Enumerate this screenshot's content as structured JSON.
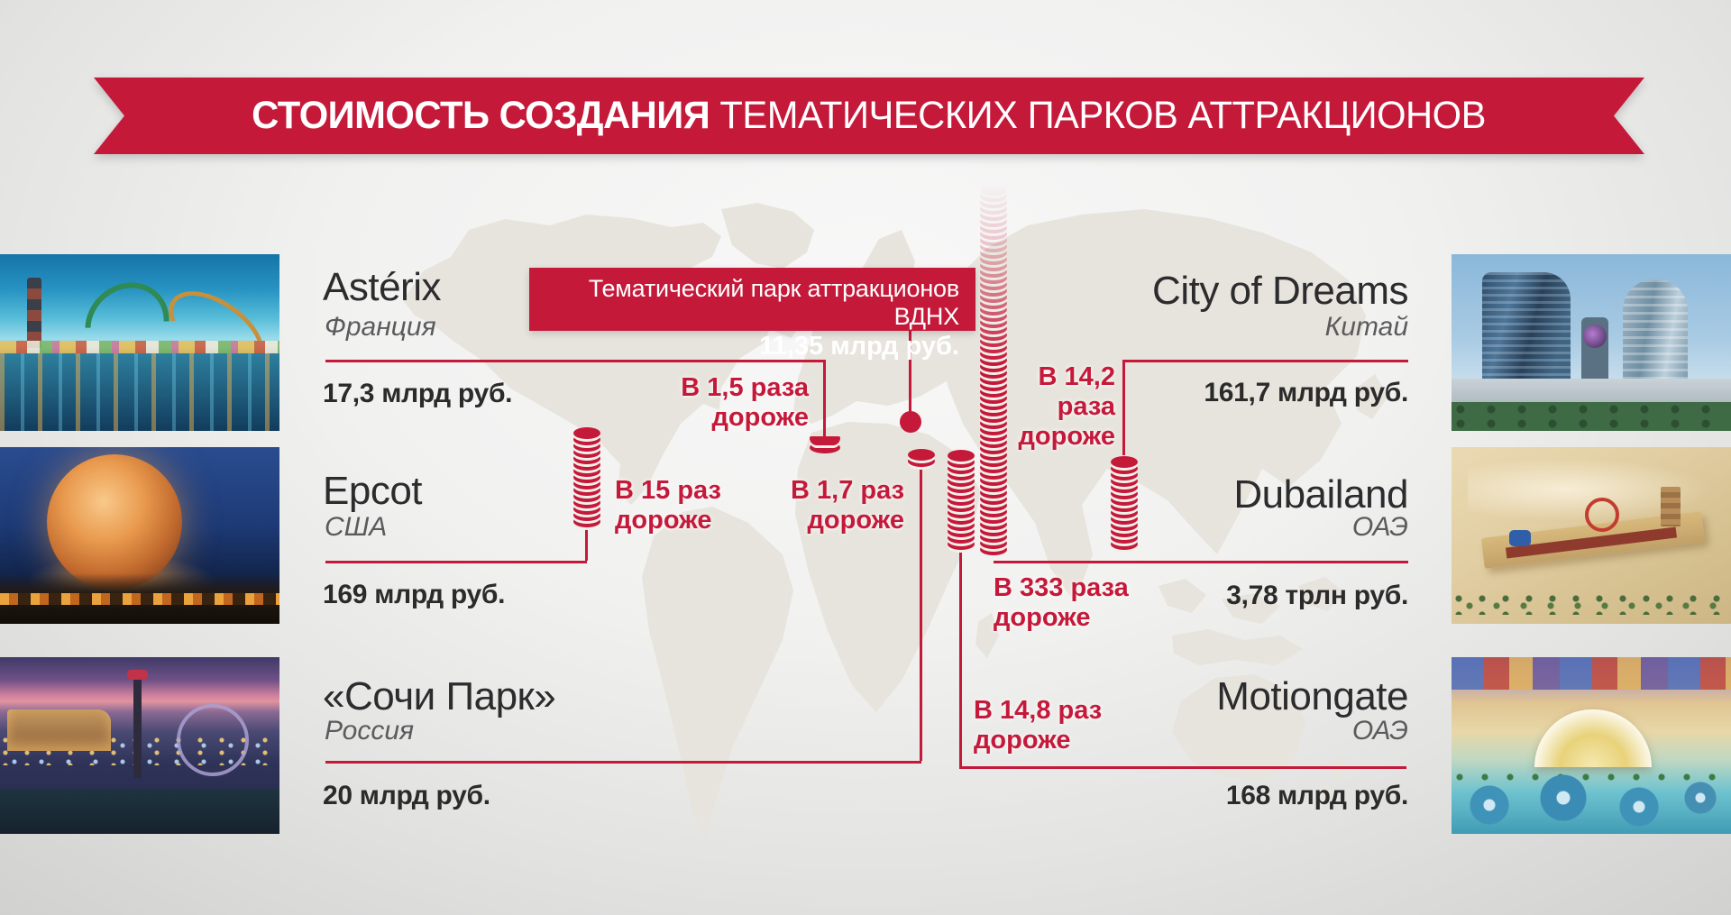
{
  "title": {
    "bold": "СТОИМОСТЬ СОЗДАНИЯ",
    "rest": " ТЕМАТИЧЕСКИХ ПАРКОВ АТТРАКЦИОНОВ"
  },
  "colors": {
    "accent": "#c5193a",
    "map": "#e7e4dd",
    "text_dark": "#2b2b2b",
    "text_gray": "#5b5b5d",
    "background": "#f1f1f0"
  },
  "callout": {
    "line1": "Тематический парк аттракционов ВДНХ",
    "line2": "11,35 млрд руб."
  },
  "parks": [
    {
      "id": "asterix",
      "name": "Astérix",
      "country": "Франция",
      "price": "17,3 млрд руб.",
      "factor_lines": [
        "В 1,5 раза",
        "дороже"
      ],
      "coins": 1.5
    },
    {
      "id": "epcot",
      "name": "Epcot",
      "country": "США",
      "price": "169 млрд руб.",
      "factor_lines": [
        "В 15 раз",
        "дороже"
      ],
      "coins": 15
    },
    {
      "id": "sochi",
      "name": "«Сочи Парк»",
      "country": "Россия",
      "price": "20 млрд руб.",
      "factor_lines": [
        "В 1,7 раз",
        "дороже"
      ],
      "coins": 2
    },
    {
      "id": "cod",
      "name": "City of Dreams",
      "country": "Китай",
      "price": "161,7 млрд руб.",
      "factor_lines": [
        "В 14,2",
        "раза",
        "дороже"
      ],
      "coins": 14
    },
    {
      "id": "dubailand",
      "name": "Dubailand",
      "country": "ОАЭ",
      "price": "3,78 трлн руб.",
      "factor_lines": [
        "В 333 раза",
        "дороже"
      ],
      "coins": 58
    },
    {
      "id": "motiongate",
      "name": "Motiongate",
      "country": "ОАЭ",
      "price": "168 млрд руб.",
      "factor_lines": [
        "В 14,8 раз",
        "дороже"
      ],
      "coins": 15
    }
  ],
  "chart_data": {
    "type": "bar",
    "title": "Стоимость создания тематических парков аттракционов",
    "reference": {
      "name": "Тематический парк аттракционов ВДНХ",
      "cost": "11,35 млрд руб."
    },
    "categories": [
      "Astérix",
      "Epcot",
      "«Сочи Парк»",
      "City of Dreams",
      "Dubailand",
      "Motiongate"
    ],
    "countries": [
      "Франция",
      "США",
      "Россия",
      "Китай",
      "ОАЭ",
      "ОАЭ"
    ],
    "costs": [
      "17,3 млрд руб.",
      "169 млрд руб.",
      "20 млрд руб.",
      "161,7 млрд руб.",
      "3,78 трлн руб.",
      "168 млрд руб."
    ],
    "multiplier_vs_vdnh": [
      1.5,
      15,
      1.7,
      14.2,
      333,
      14.8
    ],
    "multiplier_labels": [
      "В 1,5 раза дороже",
      "В 15 раз дороже",
      "В 1,7 раз дороже",
      "В 14,2 раза дороже",
      "В 333 раза дороже",
      "В 14,8 раз дороже"
    ],
    "layout": "pictorial coin stacks anchored on world map, legend-free, values labeled directly"
  }
}
